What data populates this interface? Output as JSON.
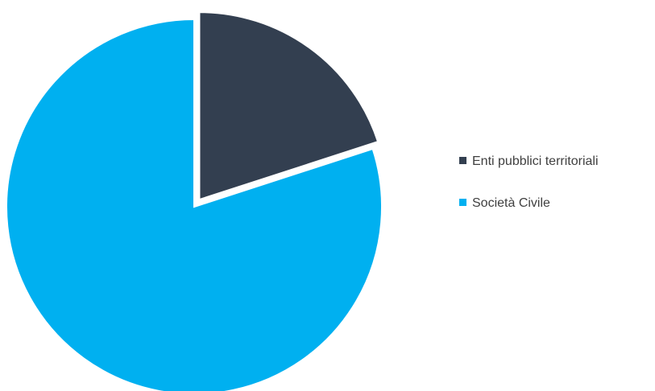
{
  "chart_data": {
    "type": "pie",
    "title": "",
    "categories": [
      "Enti pubblici territoriali",
      "Società Civile"
    ],
    "values": [
      20,
      80
    ],
    "colors": [
      "#333f50",
      "#00b0f0"
    ],
    "exploded": [
      "Enti pubblici territoriali"
    ],
    "legend_position": "right"
  }
}
